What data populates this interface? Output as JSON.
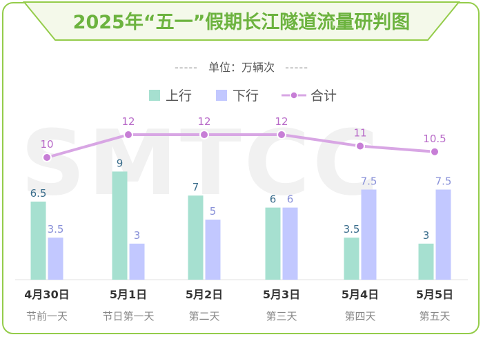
{
  "title": "2025年“五一”假期长江隧道流量研判图",
  "unit_label": "单位：万辆次",
  "unit_dashes": "-----",
  "watermark": "SMTCC",
  "colors": {
    "accent": "#94cc4a",
    "title": "#6cb33f",
    "up": "#a6e0d0",
    "down": "#c2c8ff",
    "total_line": "#d8a6e4",
    "total_dot": "#c77ed6",
    "up_label": "#3a6d8c",
    "down_label": "#8890d8",
    "total_label": "#b86ac8"
  },
  "legend": [
    {
      "key": "up",
      "label": "上行"
    },
    {
      "key": "down",
      "label": "下行"
    },
    {
      "key": "total",
      "label": "合计"
    }
  ],
  "chart_data": {
    "type": "bar",
    "categories": [
      "4月30日",
      "5月1日",
      "5月2日",
      "5月3日",
      "5月4日",
      "5月5日"
    ],
    "sub_labels": [
      "节前一天",
      "节日第一天",
      "第二天",
      "第三天",
      "第四天",
      "第五天"
    ],
    "series": [
      {
        "name": "上行",
        "type": "bar",
        "values": [
          6.5,
          9,
          7,
          6,
          3.5,
          3
        ],
        "labels": [
          "6.5",
          "9",
          "7",
          "6",
          "3.5",
          "3"
        ]
      },
      {
        "name": "下行",
        "type": "bar",
        "values": [
          3.5,
          3,
          5,
          6,
          7.5,
          7.5
        ],
        "labels": [
          "3.5",
          "3",
          "5",
          "6",
          "7.5",
          "7.5"
        ]
      },
      {
        "name": "合计",
        "type": "line",
        "values": [
          10,
          12,
          12,
          12,
          11,
          10.5
        ],
        "labels": [
          "10",
          "12",
          "12",
          "12",
          "11",
          "10.5"
        ]
      }
    ],
    "title": "2025年“五一”假期长江隧道流量研判图",
    "ylabel": "单位：万辆次",
    "ylim": [
      0,
      12.5
    ],
    "grid": false,
    "legend_position": "top-center"
  }
}
